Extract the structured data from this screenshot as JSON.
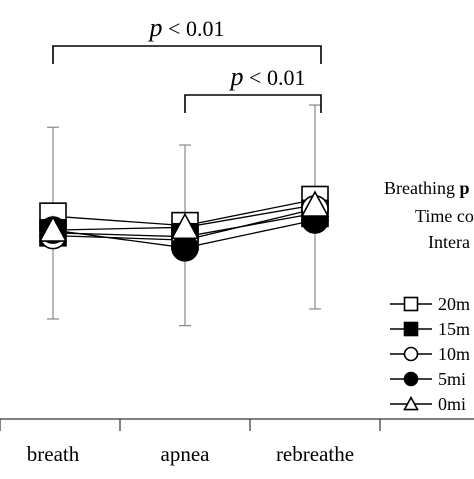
{
  "chart_data": {
    "type": "line",
    "categories": [
      "breath",
      "apnea",
      "rebreathe"
    ],
    "series": [
      {
        "name": "20m",
        "marker": "square-open",
        "values": [
          3.65,
          3.48,
          3.95
        ],
        "err": [
          1.6,
          1.45,
          1.7
        ]
      },
      {
        "name": "15m",
        "marker": "square-filled",
        "values": [
          3.35,
          3.28,
          3.7
        ],
        "err": [
          1.5,
          1.4,
          1.6
        ]
      },
      {
        "name": "10m",
        "marker": "circle-open",
        "values": [
          3.3,
          3.22,
          3.78
        ],
        "err": [
          1.5,
          1.4,
          1.6
        ]
      },
      {
        "name": "5mi",
        "marker": "circle-filled",
        "values": [
          3.4,
          3.08,
          3.58
        ],
        "err": [
          1.5,
          1.4,
          1.6
        ]
      },
      {
        "name": "0mi",
        "marker": "triangle-open",
        "values": [
          3.4,
          3.45,
          3.85
        ],
        "err": [
          1.5,
          1.4,
          1.6
        ]
      }
    ],
    "ylim": [
      0,
      7
    ],
    "ylabel": "",
    "xlabel": "",
    "grid": false,
    "legend_placement": "right",
    "comparisons": [
      {
        "from": "breath",
        "to": "rebreathe",
        "p_var": "p",
        "p_rest": " < 0.01"
      },
      {
        "from": "apnea",
        "to": "rebreathe",
        "p_var": "p",
        "p_rest": " < 0.01"
      }
    ],
    "stats_text": [
      "Breathing p",
      "Time co",
      "Intera"
    ],
    "colors": {
      "line": "#000000",
      "error_bar": "#888888",
      "axis": "#333333"
    }
  }
}
